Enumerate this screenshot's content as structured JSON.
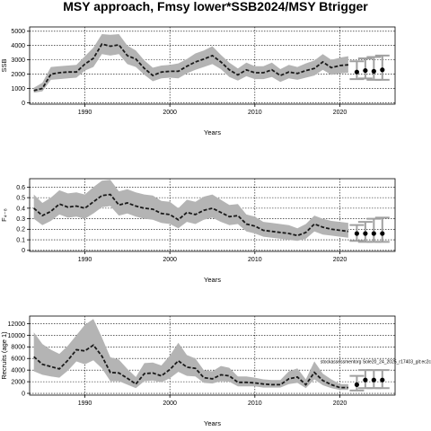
{
  "figure": {
    "title": "MSY approach, Fmsy lower*SSB2024/MSY Btrigger"
  },
  "chart_data": [
    {
      "type": "line",
      "panel": "ssb",
      "title": "",
      "xlabel": "Years",
      "ylabel": "SSB",
      "xlim": [
        1983.5,
        2026.5
      ],
      "ylim": [
        -100,
        5300
      ],
      "xticks": [
        1990,
        2000,
        2010,
        2020
      ],
      "yticks": [
        0,
        1000,
        2000,
        3000,
        4000,
        5000
      ],
      "grid": true,
      "years": [
        1984,
        1985,
        1986,
        1987,
        1988,
        1989,
        1990,
        1991,
        1992,
        1993,
        1994,
        1995,
        1996,
        1997,
        1998,
        1999,
        2000,
        2001,
        2002,
        2003,
        2004,
        2005,
        2006,
        2007,
        2008,
        2009,
        2010,
        2011,
        2012,
        2013,
        2014,
        2015,
        2016,
        2017,
        2018,
        2019,
        2020,
        2021
      ],
      "median": [
        850,
        1000,
        2000,
        2100,
        2150,
        2150,
        2700,
        3100,
        4100,
        3950,
        4050,
        3300,
        3050,
        2400,
        1900,
        2150,
        2200,
        2200,
        2550,
        2850,
        3050,
        3300,
        2850,
        2300,
        1950,
        2300,
        2100,
        2100,
        2300,
        1900,
        2150,
        2050,
        2250,
        2400,
        2850,
        2450,
        2600,
        2650
      ],
      "band_upper": [
        1050,
        1400,
        2500,
        2550,
        2600,
        2650,
        3250,
        3850,
        4800,
        4750,
        4800,
        4000,
        3650,
        2950,
        2450,
        2600,
        2650,
        2750,
        3050,
        3450,
        3650,
        3950,
        3350,
        2800,
        2400,
        2800,
        2550,
        2550,
        2800,
        2350,
        2650,
        2500,
        2750,
        2950,
        3400,
        3000,
        3150,
        3250
      ],
      "band_lower": [
        700,
        800,
        1600,
        1650,
        1700,
        1750,
        2250,
        2500,
        3400,
        3300,
        3400,
        2700,
        2500,
        1950,
        1500,
        1700,
        1750,
        1700,
        2050,
        2300,
        2500,
        2700,
        2350,
        1800,
        1550,
        1850,
        1650,
        1650,
        1800,
        1450,
        1700,
        1600,
        1750,
        1900,
        2300,
        1950,
        2050,
        2100
      ],
      "projection": {
        "years": [
          2022,
          2023,
          2024,
          2025
        ],
        "median": [
          2150,
          2250,
          2200,
          2300
        ],
        "upper": [
          2900,
          3100,
          3200,
          3300
        ],
        "lower": [
          1650,
          1700,
          1600,
          1600
        ]
      }
    },
    {
      "type": "line",
      "panel": "fishing-mortality",
      "title": "",
      "xlabel": "Years",
      "ylabel": "F₄₋₈",
      "xlim": [
        1983.5,
        2026.5
      ],
      "ylim": [
        -0.01,
        0.68
      ],
      "xticks": [
        1990,
        2000,
        2010,
        2020
      ],
      "yticks": [
        0.0,
        0.1,
        0.2,
        0.3,
        0.4,
        0.5,
        0.6
      ],
      "grid": true,
      "years": [
        1984,
        1985,
        1986,
        1987,
        1988,
        1989,
        1990,
        1991,
        1992,
        1993,
        1994,
        1995,
        1996,
        1997,
        1998,
        1999,
        2000,
        2001,
        2002,
        2003,
        2004,
        2005,
        2006,
        2007,
        2008,
        2009,
        2010,
        2011,
        2012,
        2013,
        2014,
        2015,
        2016,
        2017,
        2018,
        2019,
        2020,
        2021
      ],
      "median": [
        0.4,
        0.33,
        0.37,
        0.44,
        0.41,
        0.42,
        0.4,
        0.46,
        0.52,
        0.53,
        0.43,
        0.45,
        0.42,
        0.4,
        0.39,
        0.35,
        0.34,
        0.29,
        0.36,
        0.34,
        0.38,
        0.4,
        0.36,
        0.32,
        0.33,
        0.25,
        0.23,
        0.19,
        0.18,
        0.17,
        0.16,
        0.14,
        0.17,
        0.25,
        0.22,
        0.2,
        0.19,
        0.18
      ],
      "band_upper": [
        0.53,
        0.45,
        0.5,
        0.57,
        0.54,
        0.55,
        0.53,
        0.6,
        0.66,
        0.67,
        0.56,
        0.58,
        0.55,
        0.53,
        0.52,
        0.47,
        0.46,
        0.4,
        0.48,
        0.46,
        0.51,
        0.53,
        0.48,
        0.43,
        0.44,
        0.34,
        0.32,
        0.27,
        0.26,
        0.25,
        0.24,
        0.21,
        0.25,
        0.33,
        0.3,
        0.28,
        0.27,
        0.26
      ],
      "band_lower": [
        0.3,
        0.24,
        0.28,
        0.34,
        0.31,
        0.32,
        0.3,
        0.35,
        0.41,
        0.42,
        0.33,
        0.35,
        0.32,
        0.3,
        0.29,
        0.26,
        0.25,
        0.21,
        0.27,
        0.25,
        0.29,
        0.31,
        0.27,
        0.24,
        0.25,
        0.18,
        0.16,
        0.13,
        0.12,
        0.11,
        0.1,
        0.09,
        0.11,
        0.18,
        0.15,
        0.14,
        0.13,
        0.12
      ],
      "projection": {
        "years": [
          2022,
          2023,
          2024,
          2025
        ],
        "median": [
          0.16,
          0.16,
          0.16,
          0.16
        ],
        "upper": [
          0.24,
          0.27,
          0.3,
          0.31
        ],
        "lower": [
          0.09,
          0.08,
          0.08,
          0.08
        ]
      }
    },
    {
      "type": "line",
      "panel": "recruits",
      "title": "",
      "xlabel": "Years",
      "ylabel": "Recruits (age 1)",
      "annotation": "stockassessmentorg Sole20_24_2025_r17403_git:ec2c",
      "xlim": [
        1983.5,
        2026.5
      ],
      "ylim": [
        -300,
        13300
      ],
      "xticks": [
        1990,
        2000,
        2010,
        2020
      ],
      "yticks": [
        0,
        2000,
        4000,
        6000,
        8000,
        10000,
        12000
      ],
      "grid": true,
      "years": [
        1984,
        1985,
        1986,
        1987,
        1988,
        1989,
        1990,
        1991,
        1992,
        1993,
        1994,
        1995,
        1996,
        1997,
        1998,
        1999,
        2000,
        2001,
        2002,
        2003,
        2004,
        2005,
        2006,
        2007,
        2008,
        2009,
        2010,
        2011,
        2012,
        2013,
        2014,
        2015,
        2016,
        2017,
        2018,
        2019,
        2020,
        2021
      ],
      "median": [
        6300,
        5000,
        4600,
        4200,
        5700,
        7500,
        7300,
        8300,
        6400,
        3600,
        3500,
        2600,
        1600,
        3400,
        3500,
        3000,
        4100,
        5600,
        4500,
        4300,
        2700,
        2500,
        3200,
        3000,
        1900,
        1900,
        1800,
        1600,
        1500,
        1500,
        2500,
        2800,
        1500,
        3600,
        2200,
        1500,
        1000,
        1000
      ],
      "band_upper": [
        10500,
        8500,
        7500,
        6800,
        8200,
        10000,
        11800,
        12800,
        9600,
        6200,
        5800,
        4200,
        2800,
        5200,
        5300,
        4800,
        6500,
        8700,
        6600,
        6000,
        4000,
        3800,
        4700,
        4400,
        2900,
        2900,
        2700,
        2400,
        2300,
        2300,
        3800,
        4300,
        2400,
        5500,
        3400,
        2400,
        1600,
        1600
      ],
      "band_lower": [
        3800,
        3200,
        2900,
        2700,
        3900,
        5500,
        5000,
        5700,
        4300,
        2100,
        2100,
        1500,
        900,
        2100,
        2200,
        1900,
        2600,
        3700,
        3000,
        2900,
        1800,
        1700,
        2100,
        2000,
        1200,
        1200,
        1200,
        1000,
        1000,
        1000,
        1600,
        1800,
        900,
        2400,
        1400,
        900,
        600,
        600
      ],
      "projection": {
        "years": [
          2022,
          2023,
          2024,
          2025
        ],
        "median": [
          1500,
          2300,
          2300,
          2300
        ],
        "upper": [
          3000,
          4000,
          4000,
          4000
        ],
        "lower": [
          500,
          900,
          900,
          900
        ]
      }
    }
  ]
}
